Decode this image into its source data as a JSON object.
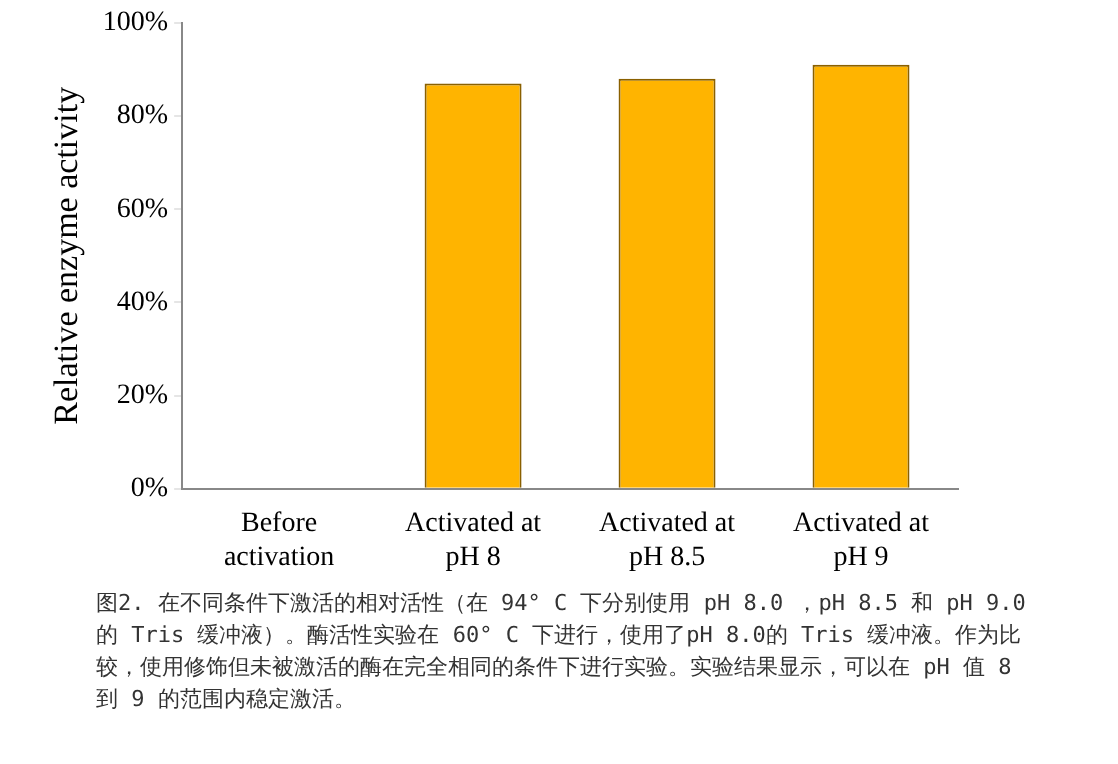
{
  "chart_data": {
    "type": "bar",
    "ylabel": "Relative enzyme activity",
    "categories": [
      "Before activation",
      "Activated at pH 8",
      "Activated at pH 8.5",
      "Activated at pH 9"
    ],
    "values": [
      0,
      87,
      88,
      91
    ],
    "color": "#ffb400",
    "ylim": [
      0,
      100
    ],
    "yticks": [
      {
        "value": 0,
        "label": "0%"
      },
      {
        "value": 20,
        "label": "20%"
      },
      {
        "value": 40,
        "label": "40%"
      },
      {
        "value": 60,
        "label": "60%"
      },
      {
        "value": 80,
        "label": "80%"
      },
      {
        "value": 100,
        "label": "100%"
      }
    ],
    "grid": false,
    "legend": false,
    "annotations": [
      "图2. 在不同条件下激活的相对活性（在 94° C 下分别使用 pH 8.0 ，pH 8.5 和 pH 9.0 的 Tris 缓冲液）。酶活性实验在 60° C 下进行，使用了pH 8.0的 Tris 缓冲液。作为比较，使用修饰但未被激活的酶在完全相同的条件下进行实验。实验结果显示，可以在 pH 值 8 到 9 的范围内稳定激活。"
    ]
  }
}
